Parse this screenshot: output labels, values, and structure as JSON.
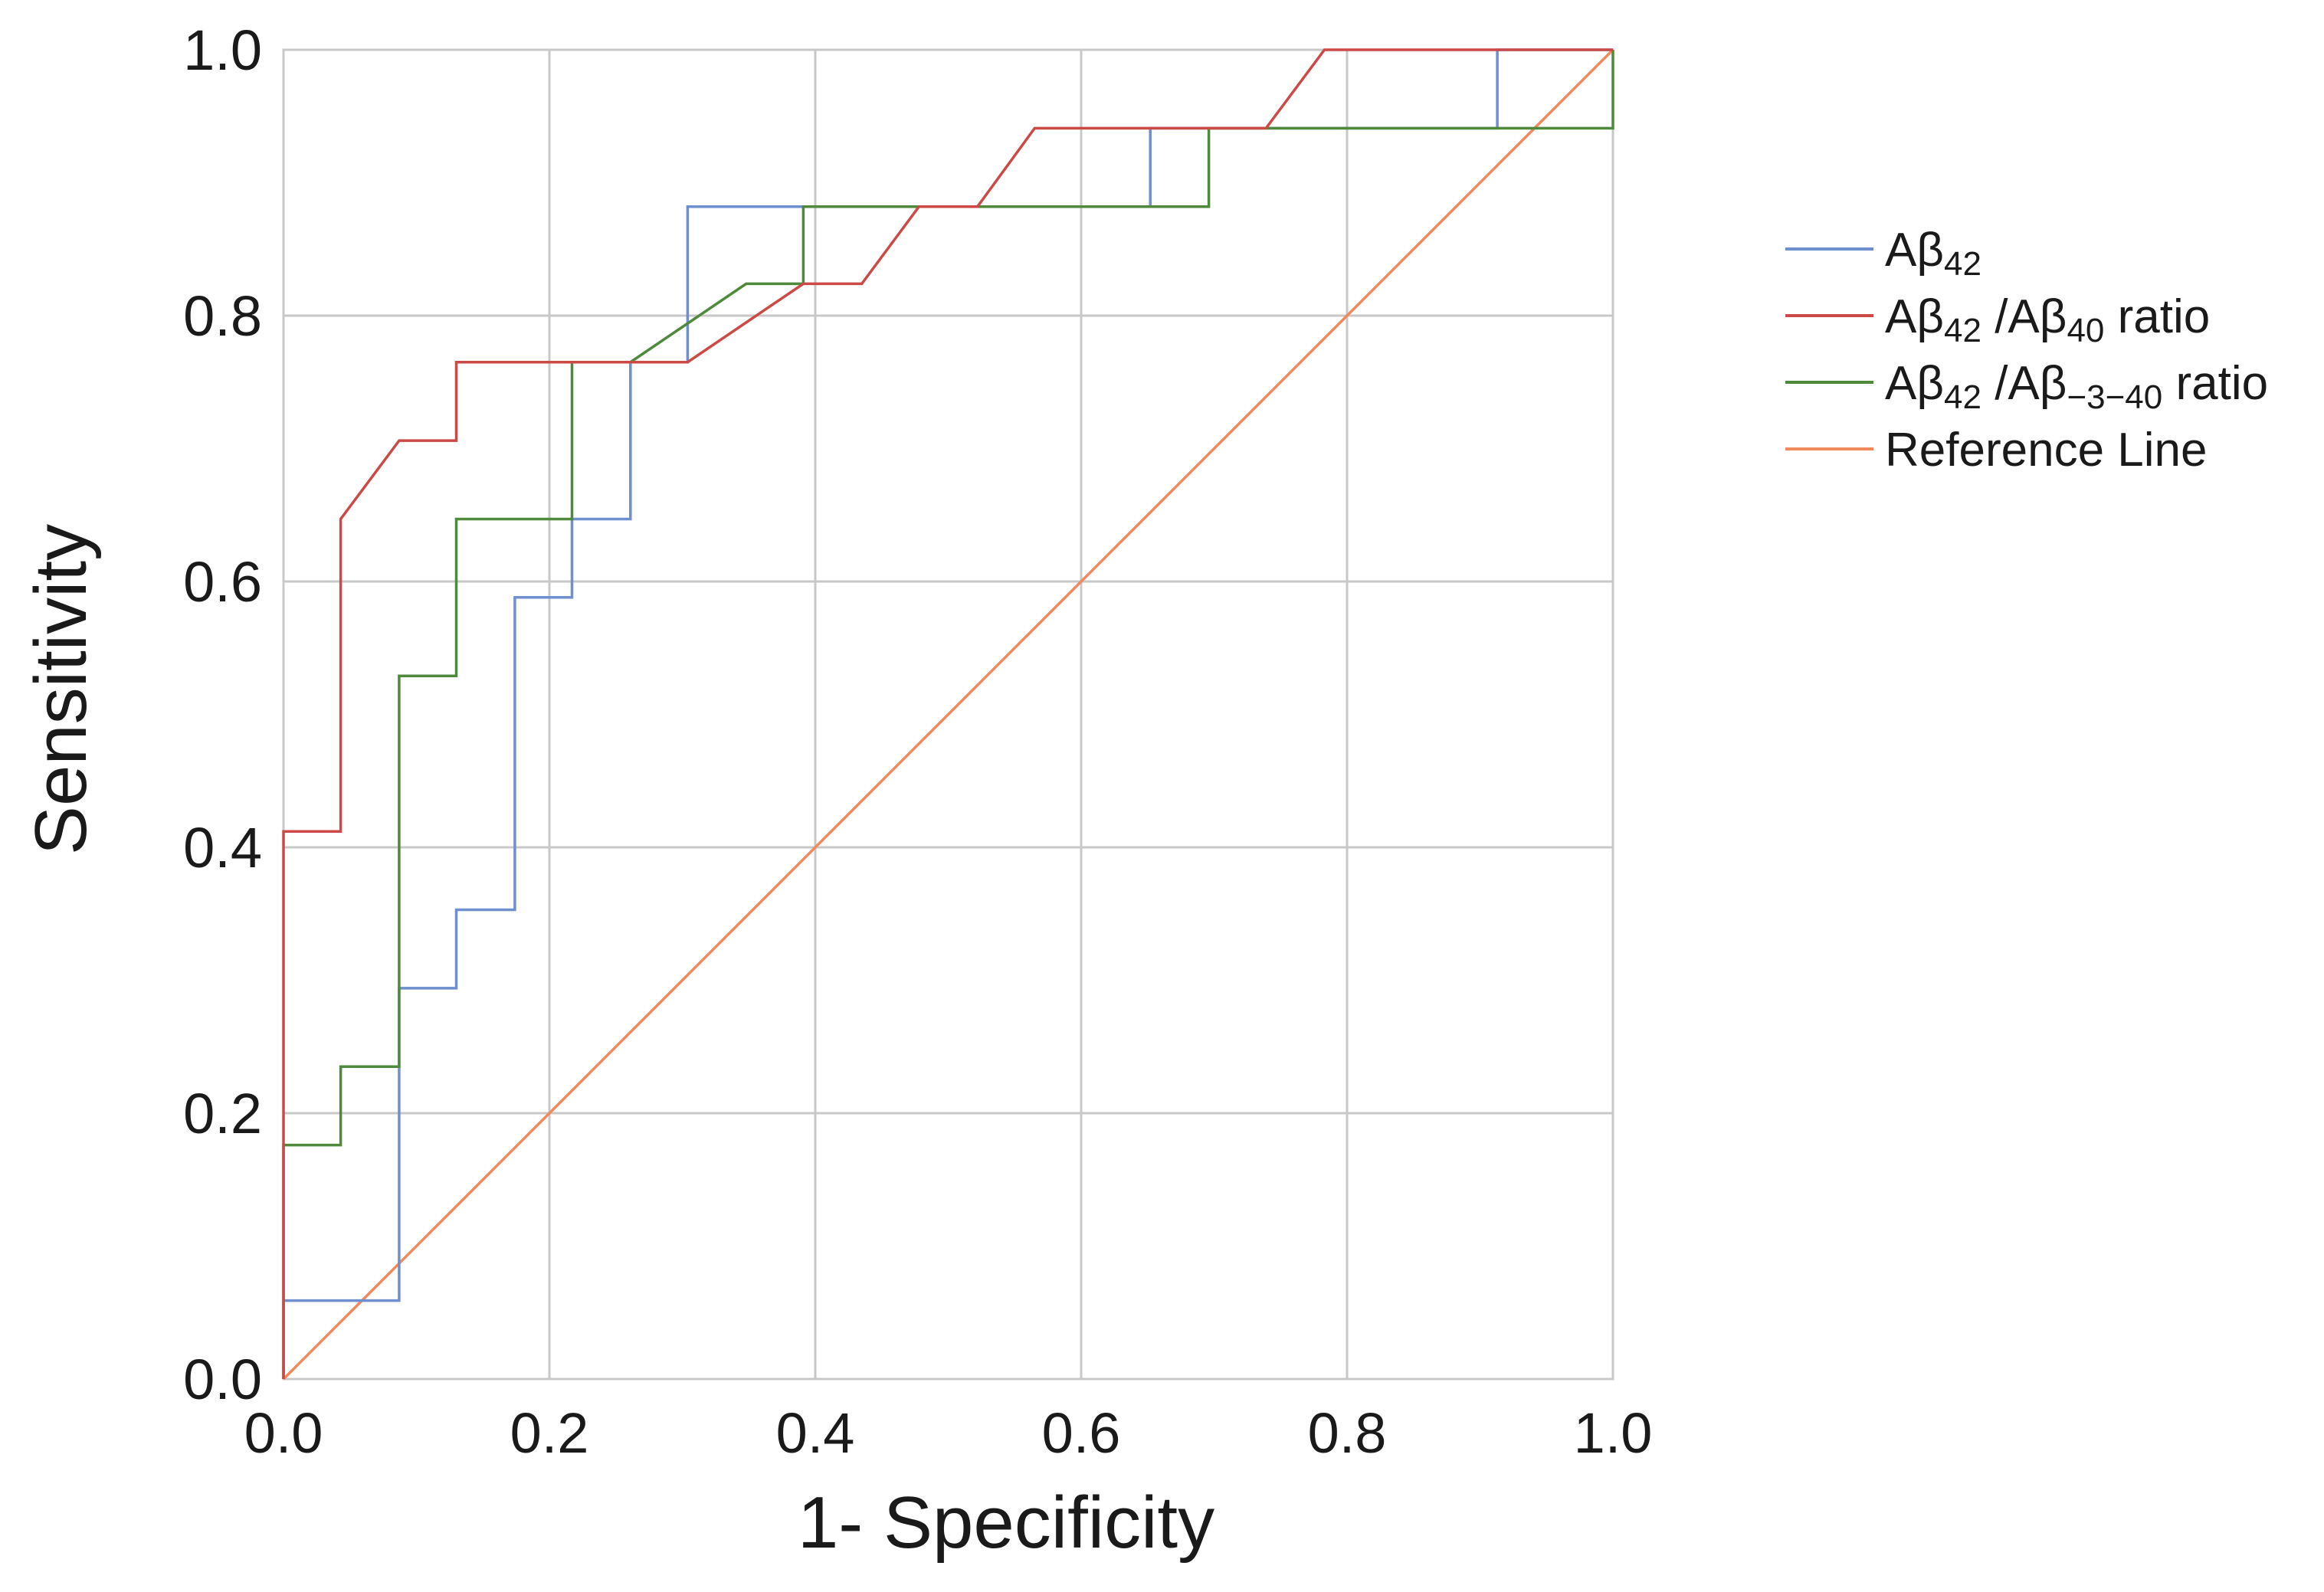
{
  "chart_data": {
    "type": "line",
    "title": "",
    "xlabel": "1- Specificity",
    "ylabel": "Sensitivity",
    "xlim": [
      0,
      1
    ],
    "ylim": [
      0,
      1
    ],
    "xticks": [
      "0.0",
      "0.2",
      "0.4",
      "0.6",
      "0.8",
      "1.0"
    ],
    "yticks": [
      "0.0",
      "0.2",
      "0.4",
      "0.6",
      "0.8",
      "1.0"
    ],
    "grid": true,
    "legend_position": "right",
    "series": [
      {
        "name": "Aβ42 ",
        "legend_base": "Aβ",
        "legend_sub": "42",
        "legend_suffix": "",
        "color": "#6f8fcf",
        "points": [
          [
            0,
            0
          ],
          [
            0,
            0.059
          ],
          [
            0.087,
            0.059
          ],
          [
            0.087,
            0.294
          ],
          [
            0.13,
            0.294
          ],
          [
            0.13,
            0.353
          ],
          [
            0.174,
            0.353
          ],
          [
            0.174,
            0.588
          ],
          [
            0.217,
            0.588
          ],
          [
            0.217,
            0.647
          ],
          [
            0.261,
            0.647
          ],
          [
            0.261,
            0.765
          ],
          [
            0.304,
            0.765
          ],
          [
            0.304,
            0.882
          ],
          [
            0.652,
            0.882
          ],
          [
            0.652,
            0.941
          ],
          [
            0.913,
            0.941
          ],
          [
            0.913,
            1.0
          ],
          [
            1.0,
            1.0
          ]
        ]
      },
      {
        "name": "Aβ42 /Aβ40 ratio",
        "legend_base": "Aβ",
        "legend_sub": "42",
        "legend_mid": " /Aβ",
        "legend_sub2": "40",
        "legend_suffix": " ratio",
        "color": "#cc4a46",
        "points": [
          [
            0,
            0
          ],
          [
            0,
            0.412
          ],
          [
            0.043,
            0.412
          ],
          [
            0.043,
            0.647
          ],
          [
            0.087,
            0.706
          ],
          [
            0.13,
            0.706
          ],
          [
            0.13,
            0.765
          ],
          [
            0.304,
            0.765
          ],
          [
            0.391,
            0.824
          ],
          [
            0.435,
            0.824
          ],
          [
            0.478,
            0.882
          ],
          [
            0.522,
            0.882
          ],
          [
            0.565,
            0.941
          ],
          [
            0.739,
            0.941
          ],
          [
            0.783,
            1.0
          ],
          [
            1.0,
            1.0
          ]
        ]
      },
      {
        "name": "Aβ42 /Aβ−3−40 ratio",
        "legend_base": "Aβ",
        "legend_sub": "42",
        "legend_mid": " /Aβ",
        "legend_sub2": "−3−40",
        "legend_suffix": " ratio",
        "color": "#4f8a3c",
        "points": [
          [
            0,
            0
          ],
          [
            0,
            0.176
          ],
          [
            0.043,
            0.176
          ],
          [
            0.043,
            0.235
          ],
          [
            0.087,
            0.235
          ],
          [
            0.087,
            0.529
          ],
          [
            0.13,
            0.529
          ],
          [
            0.13,
            0.647
          ],
          [
            0.217,
            0.647
          ],
          [
            0.217,
            0.765
          ],
          [
            0.261,
            0.765
          ],
          [
            0.348,
            0.824
          ],
          [
            0.391,
            0.824
          ],
          [
            0.391,
            0.882
          ],
          [
            0.696,
            0.882
          ],
          [
            0.696,
            0.941
          ],
          [
            1.0,
            0.941
          ],
          [
            1.0,
            1.0
          ]
        ]
      },
      {
        "name": "Reference Line",
        "legend_base": "Reference Line",
        "legend_sub": "",
        "legend_suffix": "",
        "color": "#f08a5d",
        "points": [
          [
            0,
            0
          ],
          [
            1,
            1
          ]
        ]
      }
    ]
  }
}
